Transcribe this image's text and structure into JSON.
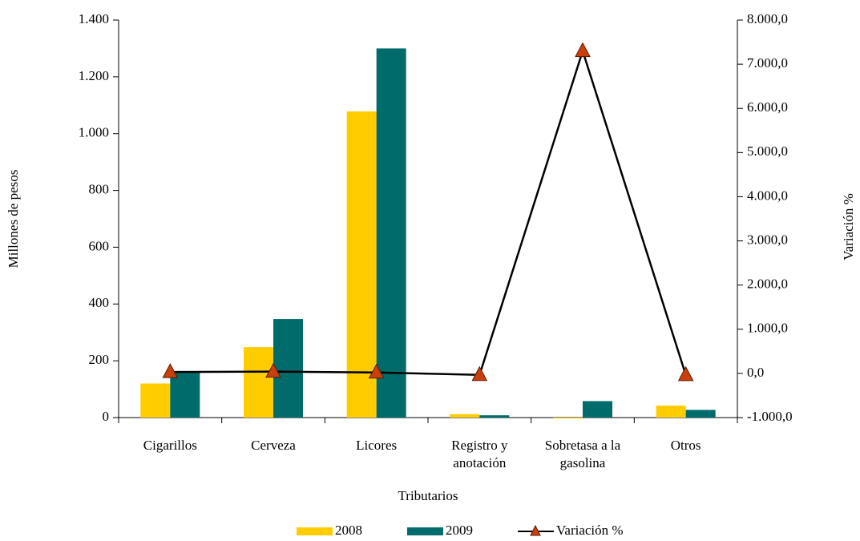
{
  "chart_data": {
    "type": "bar",
    "x_label": "Tributarios",
    "y_label": "Millones de pesos",
    "y2_label": "Variación %",
    "categories": [
      "Cigarillos",
      "Cerveza",
      "Licores",
      "Registro y anotación",
      "Sobretasa a la gasolina",
      "Otros"
    ],
    "series": [
      {
        "name": "2008",
        "type": "bar",
        "color": "#ffcc00",
        "values": [
          120,
          248,
          1078,
          12,
          -3,
          42
        ]
      },
      {
        "name": "2009",
        "type": "bar",
        "color": "#006b6b",
        "values": [
          158,
          347,
          1300,
          8,
          58,
          27
        ]
      },
      {
        "name": "Variación %",
        "type": "line",
        "axis": "y2",
        "color": "#000000",
        "marker_color": "#c8400c",
        "values": [
          31.7,
          40,
          20.6,
          -33,
          7300,
          -36
        ]
      }
    ],
    "ylim": [
      0,
      1400
    ],
    "yticks": [
      0,
      200,
      400,
      600,
      800,
      {
        "value": 1000,
        "label": "1.000"
      },
      {
        "value": 1200,
        "label": "1.200"
      },
      {
        "value": 1400,
        "label": "1.400"
      }
    ],
    "y2lim": [
      -1000,
      8000
    ],
    "y2ticks": [
      {
        "value": -1000,
        "label": "-1.000,0"
      },
      {
        "value": 0,
        "label": "0,0"
      },
      {
        "value": 1000,
        "label": "1.000,0"
      },
      {
        "value": 2000,
        "label": "2.000,0"
      },
      {
        "value": 3000,
        "label": "3.000,0"
      },
      {
        "value": 4000,
        "label": "4.000,0"
      },
      {
        "value": 5000,
        "label": "5.000,0"
      },
      {
        "value": 6000,
        "label": "6.000,0"
      },
      {
        "value": 7000,
        "label": "7.000,0"
      },
      {
        "value": 8000,
        "label": "8.000,0"
      }
    ],
    "grid": false,
    "legend": "bottom"
  }
}
